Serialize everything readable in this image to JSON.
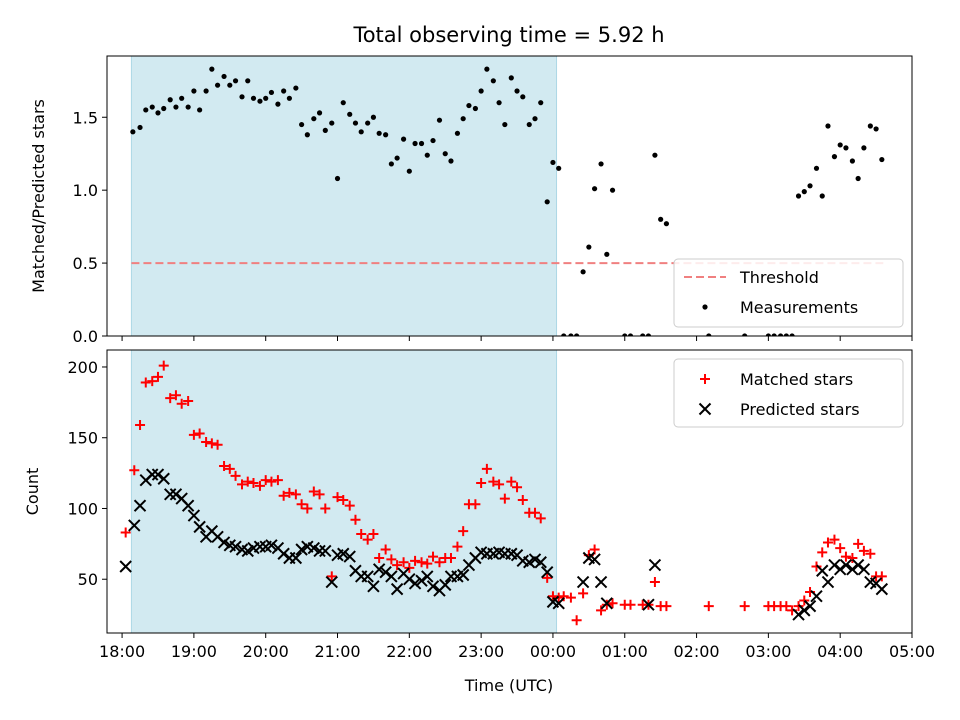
{
  "title": "Total observing time = 5.92 h",
  "xlabel": "Time (UTC)",
  "x_ticks": [
    "18:00",
    "19:00",
    "20:00",
    "21:00",
    "22:00",
    "23:00",
    "00:00",
    "01:00",
    "02:00",
    "03:00",
    "04:00",
    "05:00"
  ],
  "colors": {
    "shade": "#add8e6",
    "threshold": "#f08080",
    "matched": "#ff0000",
    "predicted": "#000000",
    "measurement": "#000000"
  },
  "chart_data": [
    {
      "type": "scatter",
      "ylabel": "Matched/Predicted stars",
      "x_unit": "hours after 18:00 UTC",
      "xlim": [
        17.79,
        29.0
      ],
      "ylim": [
        0,
        1.92
      ],
      "y_ticks": [
        "0.0",
        "0.5",
        "1.0",
        "1.5"
      ],
      "shaded_interval": [
        18.13,
        24.05
      ],
      "legend_position": "lower-right",
      "legend": [
        "Threshold",
        "Measurements"
      ],
      "threshold": {
        "name": "Threshold",
        "y": 0.5,
        "x": [
          18.13,
          28.6
        ]
      },
      "series": [
        {
          "name": "Measurements",
          "x": [
            18.15,
            18.25,
            18.33,
            18.42,
            18.5,
            18.58,
            18.67,
            18.75,
            18.83,
            18.92,
            19.0,
            19.08,
            19.17,
            19.25,
            19.33,
            19.42,
            19.5,
            19.58,
            19.67,
            19.75,
            19.83,
            19.92,
            20.0,
            20.08,
            20.17,
            20.25,
            20.33,
            20.42,
            20.5,
            20.58,
            20.67,
            20.75,
            20.83,
            20.92,
            21.0,
            21.08,
            21.17,
            21.25,
            21.33,
            21.42,
            21.5,
            21.58,
            21.67,
            21.75,
            21.83,
            21.92,
            22.0,
            22.08,
            22.17,
            22.25,
            22.33,
            22.42,
            22.5,
            22.58,
            22.67,
            22.75,
            22.83,
            22.92,
            23.0,
            23.08,
            23.17,
            23.25,
            23.33,
            23.42,
            23.5,
            23.58,
            23.67,
            23.75,
            23.83,
            23.92,
            24.0,
            24.08,
            24.15,
            24.25,
            24.33,
            24.42,
            24.5,
            24.58,
            24.67,
            24.75,
            24.83,
            25.0,
            25.08,
            25.25,
            25.33,
            25.42,
            25.5,
            25.58,
            26.17,
            26.67,
            27.0,
            27.08,
            27.17,
            27.25,
            27.33,
            27.42,
            27.5,
            27.58,
            27.67,
            27.75,
            27.83,
            27.92,
            28.0,
            28.08,
            28.17,
            28.25,
            28.33,
            28.42,
            28.5,
            28.58
          ],
          "y": [
            1.4,
            1.43,
            1.55,
            1.57,
            1.53,
            1.56,
            1.62,
            1.57,
            1.63,
            1.57,
            1.68,
            1.55,
            1.68,
            1.83,
            1.72,
            1.78,
            1.72,
            1.75,
            1.64,
            1.75,
            1.63,
            1.61,
            1.63,
            1.67,
            1.59,
            1.68,
            1.63,
            1.7,
            1.45,
            1.38,
            1.49,
            1.53,
            1.41,
            1.46,
            1.08,
            1.6,
            1.52,
            1.46,
            1.4,
            1.46,
            1.5,
            1.39,
            1.38,
            1.18,
            1.22,
            1.35,
            1.13,
            1.32,
            1.32,
            1.24,
            1.34,
            1.48,
            1.25,
            1.2,
            1.39,
            1.49,
            1.58,
            1.56,
            1.68,
            1.83,
            1.75,
            1.6,
            1.45,
            1.77,
            1.68,
            1.64,
            1.45,
            1.49,
            1.6,
            0.92,
            1.19,
            1.15,
            0.0,
            0.0,
            0.0,
            0.44,
            0.61,
            1.01,
            1.18,
            0.56,
            1.0,
            0.0,
            0.0,
            0.0,
            0.0,
            1.24,
            0.8,
            0.77,
            0.0,
            0.0,
            0.0,
            0.0,
            0.0,
            0.0,
            0.0,
            0.96,
            0.99,
            1.03,
            1.15,
            0.96,
            1.44,
            1.23,
            1.31,
            1.29,
            1.2,
            1.08,
            1.29,
            1.44,
            1.42,
            1.21
          ]
        }
      ]
    },
    {
      "type": "scatter",
      "ylabel": "Count",
      "x_unit": "hours after 18:00 UTC",
      "xlim": [
        17.79,
        29.0
      ],
      "ylim": [
        12,
        212
      ],
      "y_ticks": [
        "50",
        "100",
        "150",
        "200"
      ],
      "shaded_interval": [
        18.13,
        24.05
      ],
      "legend_position": "upper-right",
      "legend": [
        "Matched stars",
        "Predicted stars"
      ],
      "series": [
        {
          "name": "Matched stars",
          "marker": "plus",
          "x": [
            18.05,
            18.17,
            18.25,
            18.33,
            18.42,
            18.5,
            18.58,
            18.67,
            18.75,
            18.83,
            18.92,
            19.0,
            19.08,
            19.17,
            19.25,
            19.33,
            19.42,
            19.5,
            19.58,
            19.67,
            19.75,
            19.83,
            19.92,
            20.0,
            20.08,
            20.17,
            20.25,
            20.33,
            20.42,
            20.5,
            20.58,
            20.67,
            20.75,
            20.83,
            20.92,
            21.0,
            21.08,
            21.17,
            21.25,
            21.33,
            21.42,
            21.5,
            21.58,
            21.67,
            21.75,
            21.83,
            21.92,
            22.0,
            22.08,
            22.17,
            22.25,
            22.33,
            22.42,
            22.5,
            22.58,
            22.67,
            22.75,
            22.83,
            22.92,
            23.0,
            23.08,
            23.17,
            23.25,
            23.33,
            23.42,
            23.5,
            23.58,
            23.67,
            23.75,
            23.83,
            23.92,
            24.0,
            24.08,
            24.15,
            24.25,
            24.33,
            24.42,
            24.5,
            24.58,
            24.67,
            24.75,
            24.83,
            25.0,
            25.08,
            25.25,
            25.33,
            25.42,
            25.5,
            25.58,
            26.17,
            26.67,
            27.0,
            27.08,
            27.17,
            27.25,
            27.33,
            27.42,
            27.5,
            27.58,
            27.67,
            27.75,
            27.83,
            27.92,
            28.0,
            28.08,
            28.17,
            28.25,
            28.33,
            28.42,
            28.5,
            28.58
          ],
          "y": [
            83,
            127,
            159,
            189,
            190,
            193,
            201,
            178,
            180,
            174,
            176,
            152,
            153,
            147,
            146,
            145,
            130,
            128,
            123,
            117,
            119,
            118,
            116,
            120,
            119,
            120,
            109,
            111,
            110,
            103,
            100,
            112,
            110,
            100,
            52,
            108,
            106,
            102,
            92,
            82,
            78,
            82,
            65,
            71,
            64,
            60,
            62,
            58,
            63,
            62,
            61,
            66,
            62,
            65,
            65,
            73,
            84,
            103,
            103,
            118,
            128,
            119,
            117,
            107,
            119,
            115,
            106,
            97,
            97,
            93,
            51,
            38,
            37,
            38,
            37,
            21,
            40,
            67,
            71,
            28,
            32,
            33,
            32,
            32,
            32,
            32,
            48,
            31,
            31,
            31,
            31,
            31,
            31,
            31,
            31,
            28,
            31,
            35,
            41,
            59,
            69,
            76,
            78,
            72,
            66,
            65,
            75,
            70,
            68,
            52,
            52
          ]
        },
        {
          "name": "Predicted stars",
          "marker": "x",
          "x": [
            18.05,
            18.17,
            18.25,
            18.33,
            18.42,
            18.5,
            18.58,
            18.67,
            18.75,
            18.83,
            18.92,
            19.0,
            19.08,
            19.17,
            19.25,
            19.33,
            19.42,
            19.5,
            19.58,
            19.67,
            19.75,
            19.83,
            19.92,
            20.0,
            20.08,
            20.17,
            20.25,
            20.33,
            20.42,
            20.5,
            20.58,
            20.67,
            20.75,
            20.83,
            20.92,
            21.0,
            21.08,
            21.17,
            21.25,
            21.33,
            21.42,
            21.5,
            21.58,
            21.67,
            21.75,
            21.83,
            21.92,
            22.0,
            22.08,
            22.17,
            22.25,
            22.33,
            22.42,
            22.5,
            22.58,
            22.67,
            22.75,
            22.83,
            22.92,
            23.0,
            23.08,
            23.17,
            23.25,
            23.33,
            23.42,
            23.5,
            23.58,
            23.67,
            23.75,
            23.83,
            23.92,
            24.0,
            24.08,
            24.42,
            24.5,
            24.58,
            24.67,
            24.75,
            25.33,
            25.42,
            27.42,
            27.5,
            27.58,
            27.67,
            27.75,
            27.83,
            27.92,
            28.0,
            28.08,
            28.17,
            28.25,
            28.33,
            28.42,
            28.5,
            28.58
          ],
          "y": [
            59,
            88,
            102,
            120,
            124,
            124,
            121,
            110,
            110,
            107,
            102,
            95,
            87,
            80,
            84,
            80,
            76,
            74,
            73,
            71,
            70,
            72,
            73,
            73,
            74,
            72,
            68,
            65,
            65,
            71,
            73,
            72,
            70,
            70,
            48,
            67,
            68,
            66,
            56,
            52,
            52,
            45,
            57,
            55,
            52,
            43,
            54,
            50,
            47,
            49,
            52,
            45,
            42,
            46,
            52,
            52,
            53,
            60,
            65,
            69,
            68,
            68,
            69,
            68,
            68,
            67,
            63,
            62,
            64,
            62,
            55,
            34,
            33,
            48,
            65,
            64,
            48,
            33,
            32,
            60,
            25,
            28,
            31,
            38,
            56,
            48,
            60,
            57,
            60,
            57,
            60,
            57,
            48,
            47,
            43
          ]
        }
      ]
    }
  ]
}
